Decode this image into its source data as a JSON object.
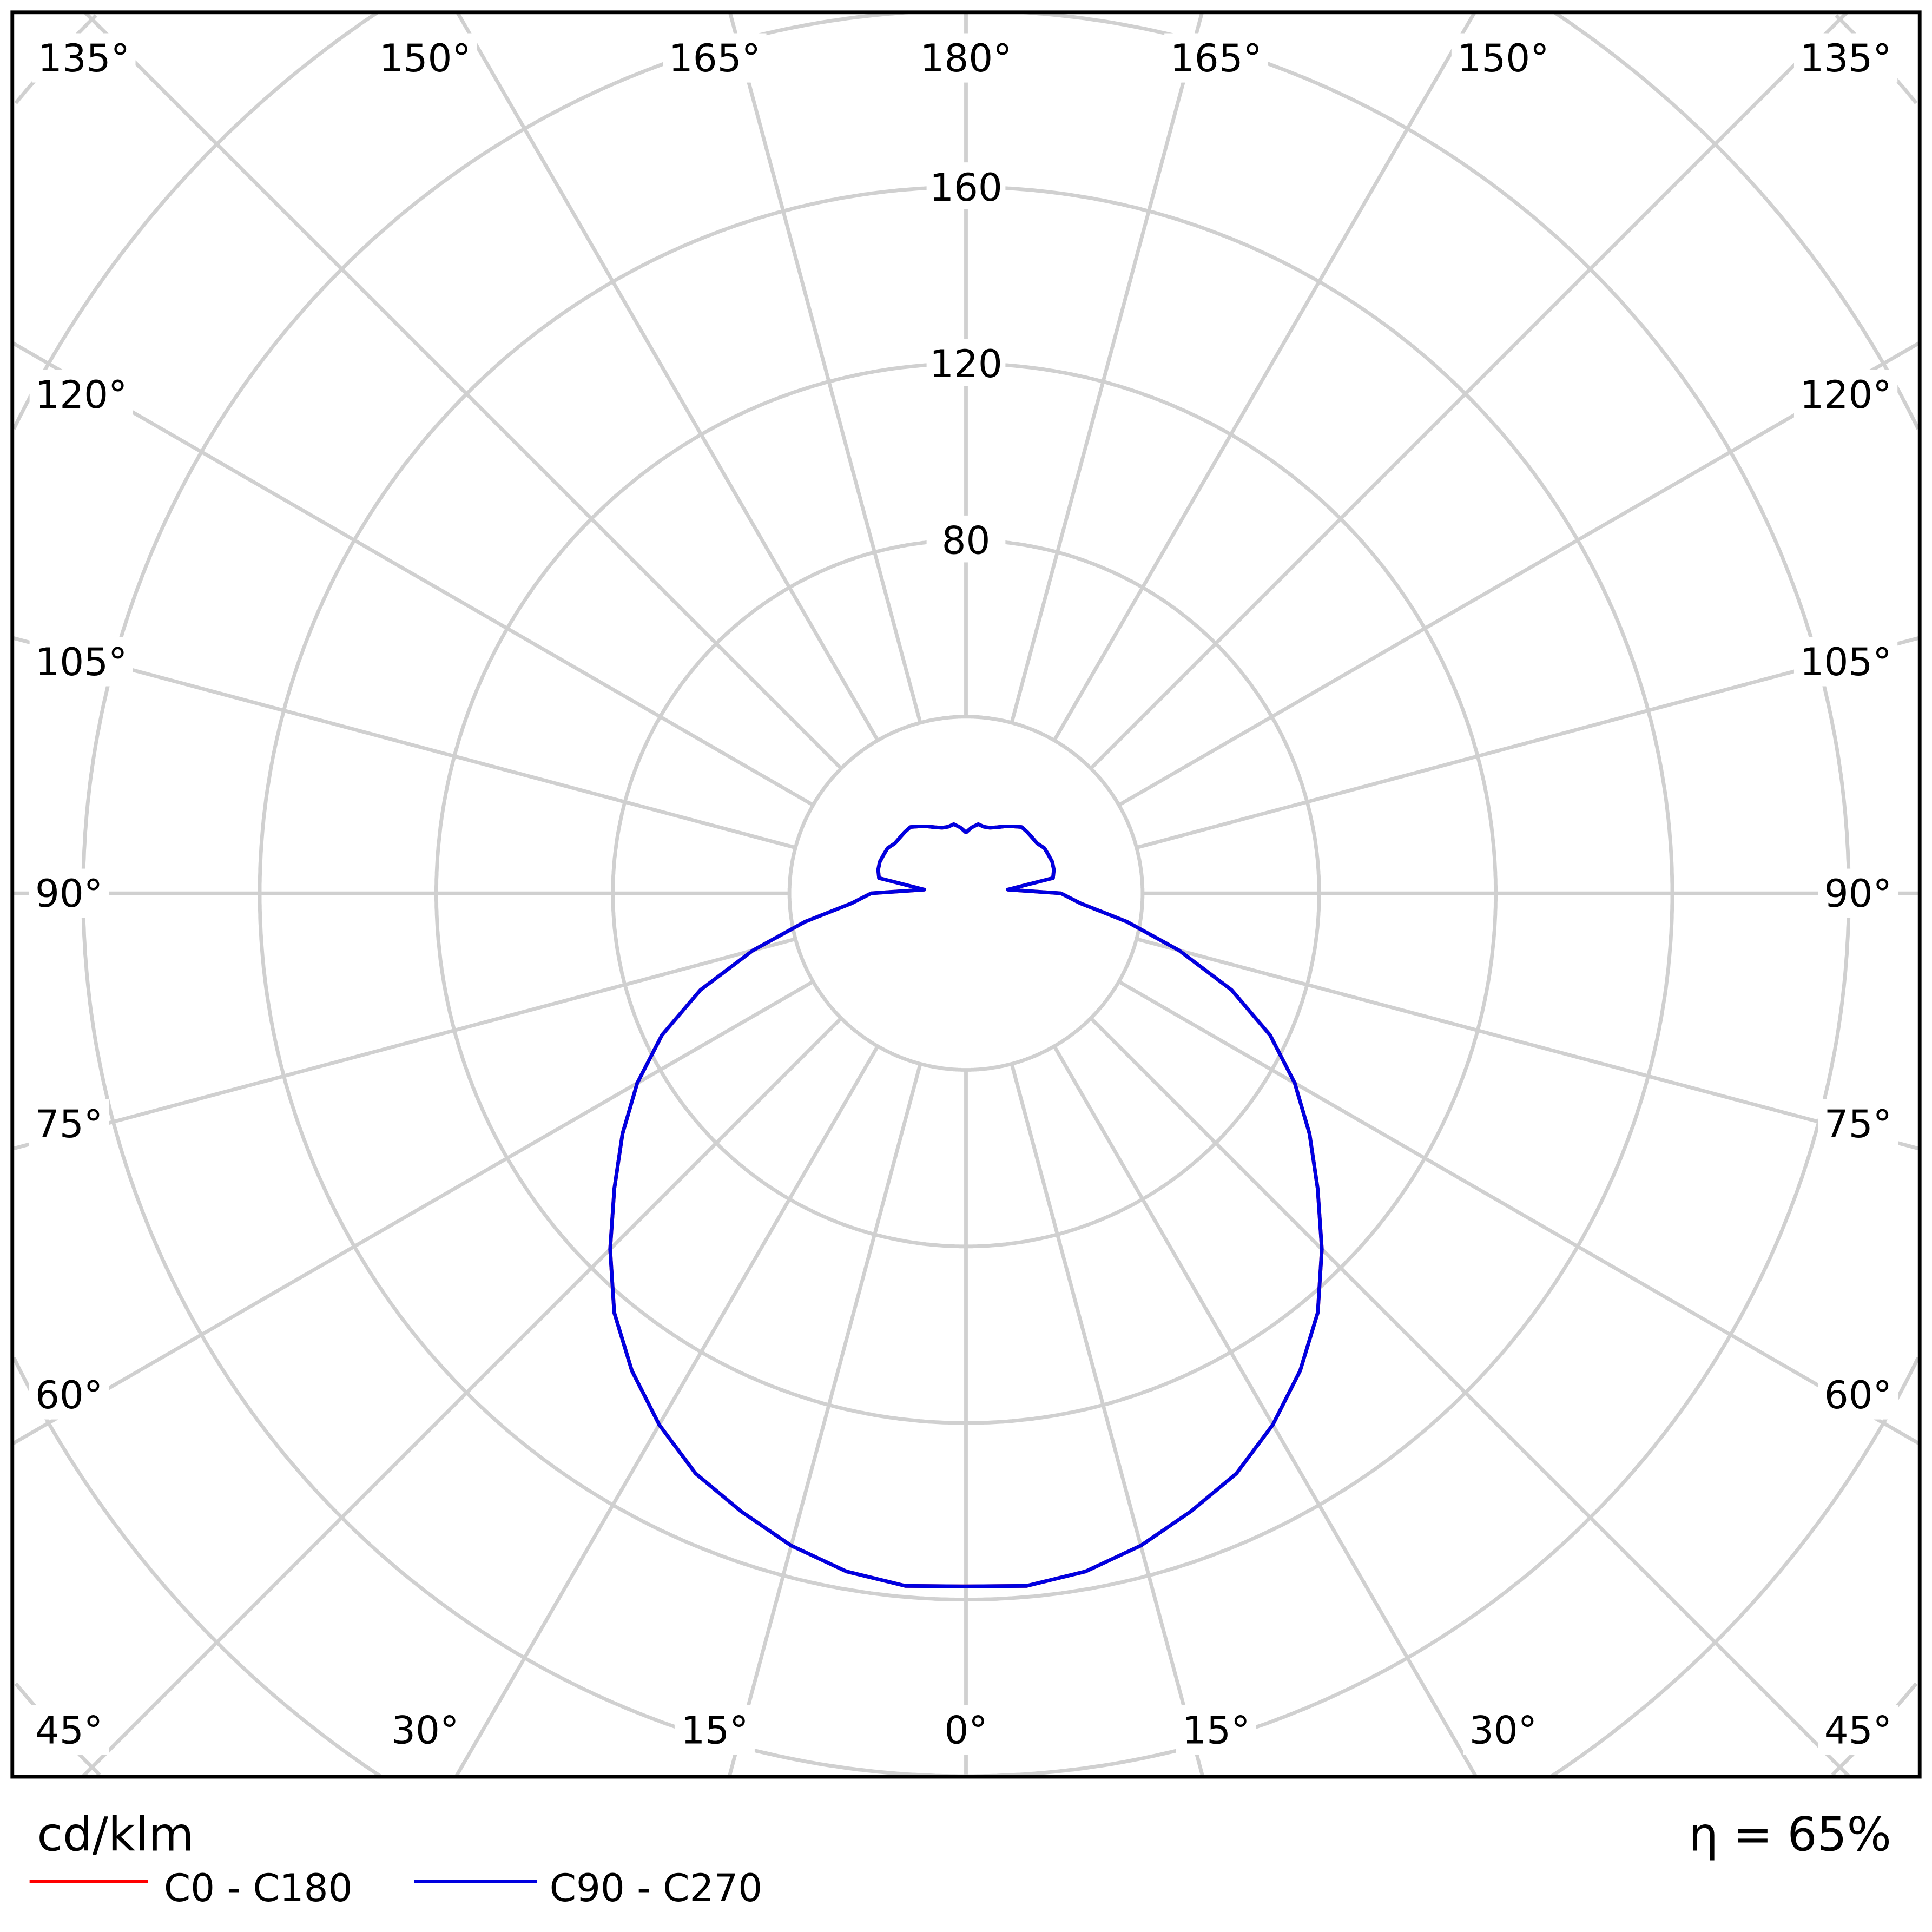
{
  "chart_data": {
    "type": "polar",
    "unit_label": "cd/klm",
    "efficiency_label": "η = 65%",
    "radial_ticks": [
      80,
      120,
      160
    ],
    "radial_max": 200,
    "grid_rings": [
      40,
      80,
      120,
      160,
      200,
      240,
      280,
      320
    ],
    "angle_labels": {
      "top": [
        "135°",
        "150°",
        "165°",
        "180°",
        "165°",
        "150°",
        "135°"
      ],
      "left": [
        "120°",
        "105°",
        "90°",
        "75°",
        "60°"
      ],
      "right": [
        "120°",
        "105°",
        "90°",
        "75°",
        "60°"
      ],
      "bottom": [
        "45°",
        "30°",
        "15°",
        "0°",
        "15°",
        "30°",
        "45°"
      ]
    },
    "series": [
      {
        "name": "C0 - C180",
        "color": "#ff0000",
        "angles": [
          0,
          5,
          10,
          15,
          20,
          25,
          30,
          35,
          40,
          45,
          50,
          55,
          60,
          65,
          70,
          75,
          80,
          85,
          90,
          95,
          100,
          105,
          110,
          115,
          120,
          125,
          130,
          135,
          140,
          145,
          150,
          155,
          160,
          165,
          170,
          175,
          180
        ],
        "values": [
          157,
          157.5,
          156,
          153,
          149,
          145,
          139,
          132,
          124,
          114,
          104,
          95,
          86,
          76,
          64,
          50,
          37,
          26,
          21.5,
          9.5,
          20,
          20.6,
          20.8,
          20.6,
          20.5,
          19.7,
          19.6,
          19.6,
          19.6,
          18.5,
          17.5,
          16.5,
          15.8,
          15.6,
          15.9,
          15,
          13.8
        ]
      },
      {
        "name": "C90 - C270",
        "color": "#0000e0",
        "angles": [
          0,
          5,
          10,
          15,
          20,
          25,
          30,
          35,
          40,
          45,
          50,
          55,
          60,
          65,
          70,
          75,
          80,
          85,
          90,
          95,
          100,
          105,
          110,
          115,
          120,
          125,
          130,
          135,
          140,
          145,
          150,
          155,
          160,
          165,
          170,
          175,
          180
        ],
        "values": [
          157,
          157.5,
          156,
          153,
          149,
          145,
          139,
          132,
          124,
          114,
          104,
          95,
          86,
          76,
          64,
          50,
          37,
          26,
          21.5,
          9.5,
          20,
          20.6,
          20.8,
          20.6,
          20.5,
          19.7,
          19.6,
          19.6,
          19.6,
          18.5,
          17.5,
          16.5,
          15.8,
          15.6,
          15.9,
          15,
          13.8
        ]
      }
    ]
  }
}
